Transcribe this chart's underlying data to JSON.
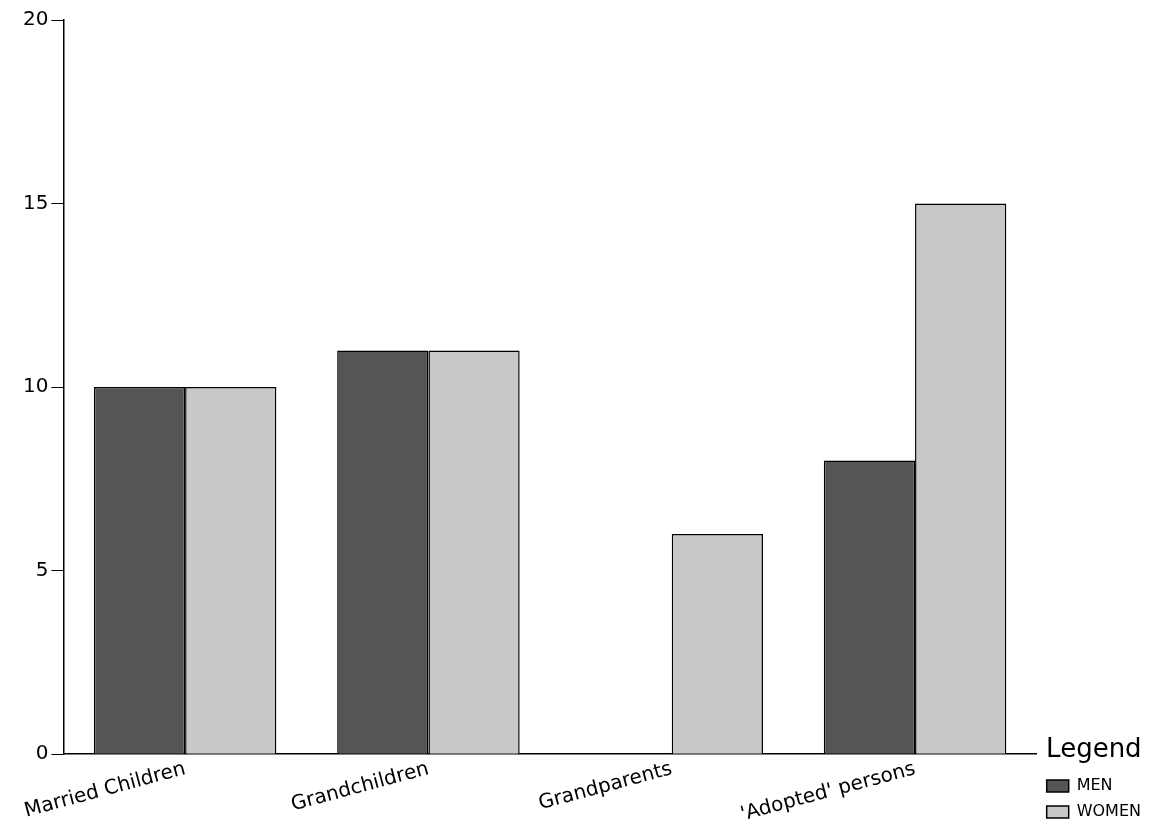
{
  "chart_data": {
    "type": "bar",
    "legend_title": "Legend",
    "legend": "right",
    "categories": [
      "Married Children",
      "Grandchildren",
      "Grandparents",
      "'Adopted' persons"
    ],
    "series": [
      {
        "name": "MEN",
        "color": "#555555",
        "values": [
          10,
          11,
          0,
          8
        ]
      },
      {
        "name": "WOMEN",
        "color": "#c8c8c8",
        "values": [
          10,
          11,
          6,
          15
        ]
      }
    ],
    "ylim": [
      0,
      20
    ],
    "yticks": [
      0,
      5,
      10,
      15,
      20
    ]
  }
}
